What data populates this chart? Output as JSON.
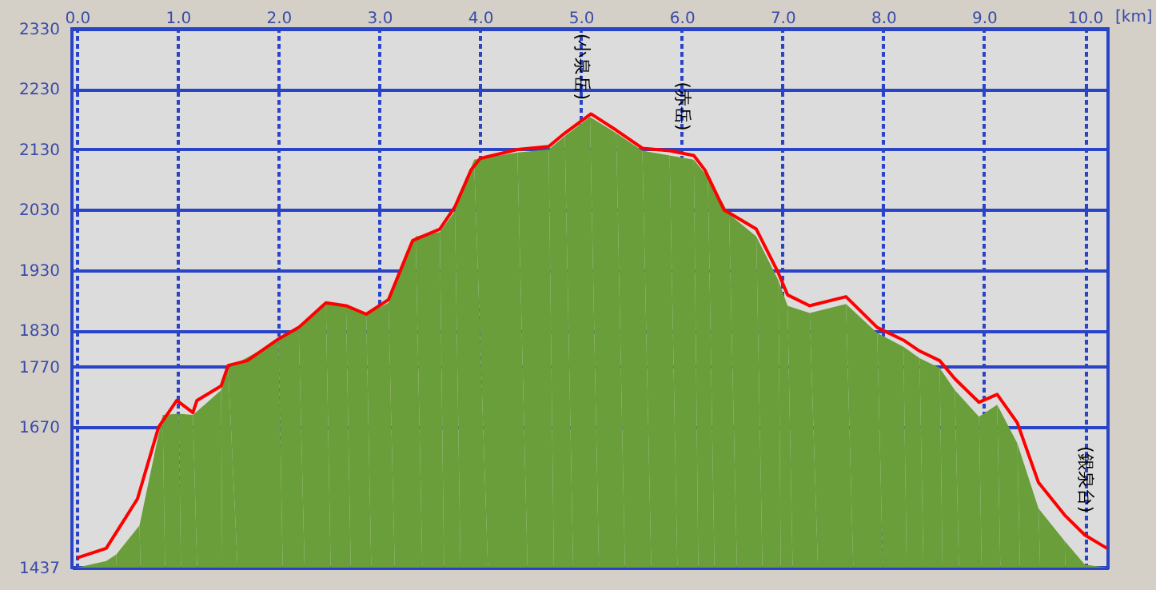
{
  "chart_data": {
    "type": "area",
    "xlabel": "[km]",
    "series": [
      {
        "color": "#6a9e3a",
        "x": [
          0,
          0.29,
          0.39,
          0.62,
          0.85,
          1.01,
          1.15,
          1.43,
          1.5,
          2.0,
          2.2,
          2.47,
          2.67,
          2.87,
          3.09,
          3.36,
          3.6,
          3.75,
          3.94,
          4.37,
          4.68,
          4.84,
          5.09,
          5.35,
          5.61,
          5.88,
          6.12,
          6.26,
          6.47,
          6.74,
          6.96,
          7.05,
          7.27,
          7.63,
          7.94,
          8.2,
          8.36,
          8.56,
          8.71,
          8.95,
          9.13,
          9.33,
          9.54,
          9.8,
          10.0,
          10.22
        ],
        "values": [
          1437,
          1448,
          1459,
          1507,
          1690,
          1692,
          1690,
          1731,
          1768,
          1814,
          1832,
          1874,
          1869,
          1857,
          1876,
          1986,
          1993,
          2028,
          2113,
          2125,
          2130,
          2152,
          2184,
          2157,
          2128,
          2120,
          2113,
          2084,
          2023,
          1986,
          1913,
          1871,
          1859,
          1874,
          1826,
          1803,
          1784,
          1768,
          1731,
          1687,
          1707,
          1643,
          1535,
          1481,
          1442,
          1437
        ]
      },
      {
        "type": "line",
        "color": "#ff0000",
        "x": [
          0,
          0.29,
          0.6,
          0.81,
          0.99,
          1.15,
          1.19,
          1.43,
          1.5,
          1.69,
          2.0,
          2.2,
          2.47,
          2.67,
          2.87,
          3.09,
          3.33,
          3.6,
          3.75,
          3.91,
          4.0,
          4.37,
          4.68,
          4.84,
          5.1,
          5.35,
          5.61,
          5.88,
          6.12,
          6.23,
          6.42,
          6.74,
          6.96,
          7.05,
          7.27,
          7.63,
          7.94,
          8.2,
          8.36,
          8.56,
          8.71,
          8.95,
          9.13,
          9.33,
          9.54,
          9.8,
          10.0,
          10.22
        ],
        "values": [
          1453,
          1469,
          1551,
          1670,
          1714,
          1694,
          1714,
          1738,
          1772,
          1780,
          1816,
          1835,
          1876,
          1871,
          1857,
          1881,
          1979,
          1998,
          2035,
          2096,
          2115,
          2130,
          2135,
          2157,
          2189,
          2162,
          2132,
          2128,
          2120,
          2096,
          2030,
          1998,
          1925,
          1889,
          1871,
          1886,
          1835,
          1814,
          1796,
          1780,
          1750,
          1711,
          1724,
          1677,
          1578,
          1524,
          1491,
          1469
        ]
      }
    ],
    "xlim": [
      -0.05,
      10.23
    ],
    "ylim": [
      1437,
      2330
    ],
    "xticks": [
      {
        "value": 0,
        "label": "0.0"
      },
      {
        "value": 1,
        "label": "1.0"
      },
      {
        "value": 2,
        "label": "2.0"
      },
      {
        "value": 3,
        "label": "3.0"
      },
      {
        "value": 4,
        "label": "4.0"
      },
      {
        "value": 5,
        "label": "5.0"
      },
      {
        "value": 6,
        "label": "6.0"
      },
      {
        "value": 7,
        "label": "7.0"
      },
      {
        "value": 8,
        "label": "8.0"
      },
      {
        "value": 9,
        "label": "9.0"
      },
      {
        "value": 10,
        "label": "10.0"
      }
    ],
    "yticks": [
      1437,
      1670,
      1770,
      1830,
      1930,
      2030,
      2130,
      2230,
      2330
    ],
    "grid": true,
    "annotations": [
      {
        "text": "(小泉岳)",
        "x": 5.0,
        "y": 2175
      },
      {
        "text": "(赤岳)",
        "x": 6.0,
        "y": 2124
      },
      {
        "text": "(銀泉台)",
        "x": 10.0,
        "y": 1491
      }
    ]
  }
}
